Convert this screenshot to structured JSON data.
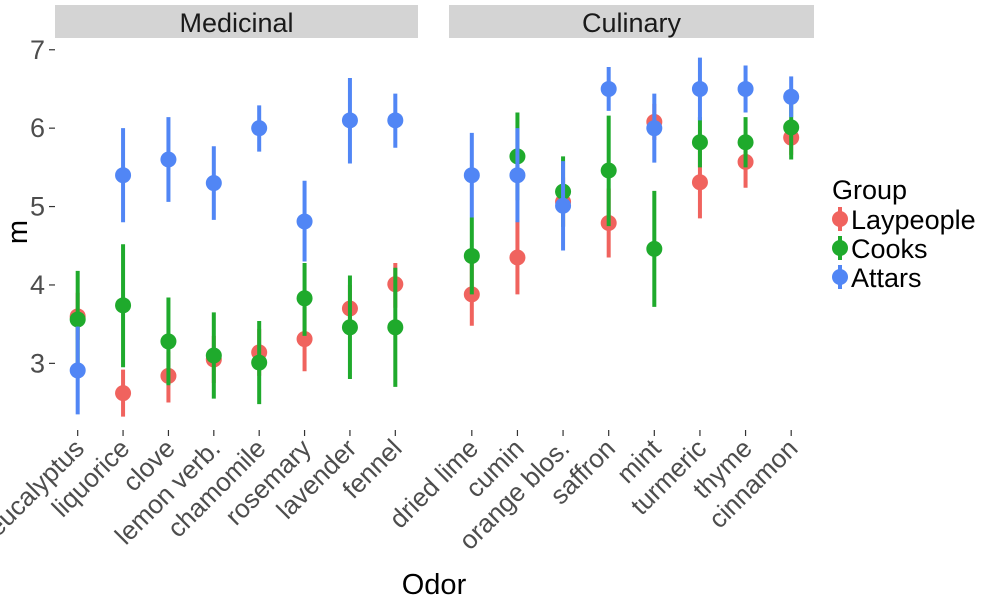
{
  "chart_data": {
    "type": "scatter",
    "subtype": "pointrange",
    "xlabel": "Odor",
    "ylabel": "m",
    "ylim": [
      2.15,
      7.15
    ],
    "yticks": [
      3,
      4,
      5,
      6,
      7
    ],
    "grid": false,
    "legend": {
      "title": "Group",
      "position": "right",
      "entries": [
        "Laypeople",
        "Cooks",
        "Attars"
      ]
    },
    "colors": {
      "Laypeople": "#F0635E",
      "Cooks": "#1FAA2C",
      "Attars": "#5186F5",
      "strip_background": "#D4D4D4"
    },
    "facets": [
      {
        "name": "Medicinal",
        "categories": [
          "eucalyptus",
          "liquorice",
          "clove",
          "lemon verb.",
          "chamomile",
          "rosemary",
          "lavender",
          "fennel"
        ],
        "series": [
          {
            "name": "Laypeople",
            "values": [
              3.6,
              2.62,
              2.84,
              3.05,
              3.14,
              3.31,
              3.7,
              4.01
            ],
            "lower": [
              3.3,
              2.32,
              2.5,
              2.75,
              2.84,
              2.9,
              3.4,
              3.71
            ],
            "upper": [
              3.9,
              2.92,
              3.15,
              3.35,
              3.44,
              3.72,
              4.0,
              4.28
            ]
          },
          {
            "name": "Cooks",
            "values": [
              3.56,
              3.74,
              3.28,
              3.1,
              3.01,
              3.83,
              3.46,
              3.46
            ],
            "lower": [
              2.95,
              2.95,
              2.72,
              2.55,
              2.48,
              3.35,
              2.8,
              2.7
            ],
            "upper": [
              4.18,
              4.52,
              3.84,
              3.65,
              3.54,
              4.28,
              4.12,
              4.22
            ]
          },
          {
            "name": "Attars",
            "values": [
              2.91,
              5.4,
              5.6,
              5.3,
              6.0,
              4.81,
              6.1,
              6.1
            ],
            "lower": [
              2.35,
              4.8,
              5.06,
              4.83,
              5.7,
              4.3,
              5.55,
              5.75
            ],
            "upper": [
              3.47,
              6.0,
              6.14,
              5.77,
              6.29,
              5.33,
              6.64,
              6.44
            ]
          }
        ]
      },
      {
        "name": "Culinary",
        "categories": [
          "dried lime",
          "cumin",
          "orange blos.",
          "saffron",
          "mint",
          "turmeric",
          "thyme",
          "cinnamon"
        ],
        "series": [
          {
            "name": "Laypeople",
            "values": [
              3.88,
              4.35,
              5.06,
              4.79,
              6.08,
              5.31,
              5.57,
              5.88
            ],
            "lower": [
              3.48,
              3.88,
              4.75,
              4.35,
              5.85,
              4.85,
              5.24,
              5.66
            ],
            "upper": [
              4.28,
              4.82,
              5.37,
              5.23,
              6.31,
              5.77,
              5.9,
              6.1
            ]
          },
          {
            "name": "Cooks",
            "values": [
              4.37,
              5.64,
              5.19,
              5.46,
              4.46,
              5.82,
              5.82,
              6.01
            ],
            "lower": [
              3.88,
              5.08,
              4.74,
              4.75,
              3.72,
              5.5,
              5.5,
              5.6
            ],
            "upper": [
              4.86,
              6.2,
              5.64,
              6.16,
              5.2,
              6.14,
              6.14,
              6.42
            ]
          },
          {
            "name": "Attars",
            "values": [
              5.4,
              5.4,
              5.01,
              6.5,
              6.0,
              6.5,
              6.5,
              6.4
            ],
            "lower": [
              4.86,
              4.8,
              4.44,
              6.22,
              5.56,
              6.1,
              6.2,
              6.14
            ],
            "upper": [
              5.94,
              6.0,
              5.58,
              6.78,
              6.44,
              6.9,
              6.8,
              6.66
            ]
          }
        ]
      }
    ]
  }
}
